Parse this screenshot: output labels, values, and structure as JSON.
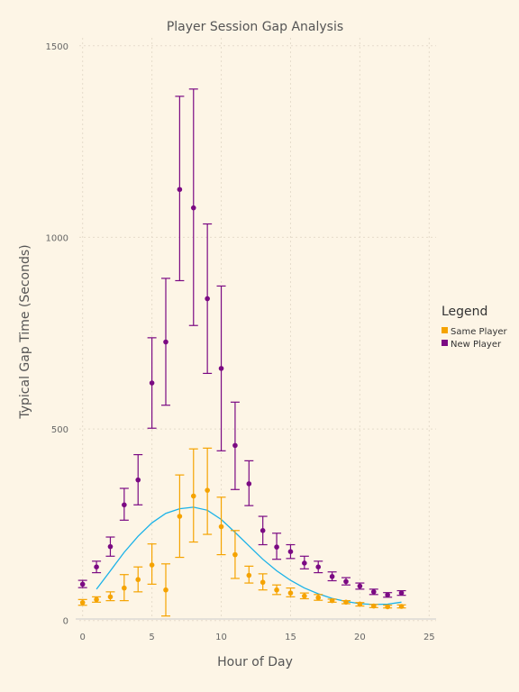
{
  "chart_data": {
    "type": "scatter",
    "title": "Player Session Gap Analysis",
    "xlabel": "Hour of Day",
    "ylabel": "Typical Gap Time (Seconds)",
    "xlim": [
      -0.5,
      25.5
    ],
    "ylim": [
      -10,
      1530
    ],
    "xticks": [
      "0",
      "5",
      "10",
      "15",
      "20",
      "25"
    ],
    "yticks": [
      "0",
      "500",
      "1000",
      "1500"
    ],
    "grid": true,
    "legend": {
      "title": "Legend",
      "position": "right"
    },
    "series": [
      {
        "name": "Same Player",
        "color": "#f5a300",
        "points": [
          {
            "x": 0,
            "y": 47,
            "lo": 40,
            "hi": 55
          },
          {
            "x": 1,
            "y": 55,
            "lo": 48,
            "hi": 62
          },
          {
            "x": 2,
            "y": 62,
            "lo": 52,
            "hi": 75
          },
          {
            "x": 3,
            "y": 85,
            "lo": 52,
            "hi": 120
          },
          {
            "x": 4,
            "y": 107,
            "lo": 75,
            "hi": 140
          },
          {
            "x": 5,
            "y": 145,
            "lo": 95,
            "hi": 200
          },
          {
            "x": 6,
            "y": 80,
            "lo": 12,
            "hi": 148
          },
          {
            "x": 7,
            "y": 272,
            "lo": 165,
            "hi": 380
          },
          {
            "x": 8,
            "y": 325,
            "lo": 205,
            "hi": 448
          },
          {
            "x": 9,
            "y": 340,
            "lo": 225,
            "hi": 450
          },
          {
            "x": 10,
            "y": 245,
            "lo": 172,
            "hi": 322
          },
          {
            "x": 11,
            "y": 172,
            "lo": 110,
            "hi": 235
          },
          {
            "x": 12,
            "y": 118,
            "lo": 98,
            "hi": 142
          },
          {
            "x": 13,
            "y": 100,
            "lo": 80,
            "hi": 122
          },
          {
            "x": 14,
            "y": 80,
            "lo": 68,
            "hi": 93
          },
          {
            "x": 15,
            "y": 72,
            "lo": 62,
            "hi": 85
          },
          {
            "x": 16,
            "y": 64,
            "lo": 57,
            "hi": 72
          },
          {
            "x": 17,
            "y": 60,
            "lo": 53,
            "hi": 68
          },
          {
            "x": 18,
            "y": 52,
            "lo": 48,
            "hi": 56
          },
          {
            "x": 19,
            "y": 48,
            "lo": 44,
            "hi": 52
          },
          {
            "x": 20,
            "y": 43,
            "lo": 38,
            "hi": 47
          },
          {
            "x": 21,
            "y": 38,
            "lo": 34,
            "hi": 42
          },
          {
            "x": 22,
            "y": 36,
            "lo": 33,
            "hi": 40
          },
          {
            "x": 23,
            "y": 37,
            "lo": 33,
            "hi": 41
          }
        ]
      },
      {
        "name": "New Player",
        "color": "#7b0a83",
        "points": [
          {
            "x": 0,
            "y": 95,
            "lo": 86,
            "hi": 105
          },
          {
            "x": 1,
            "y": 140,
            "lo": 125,
            "hi": 155
          },
          {
            "x": 2,
            "y": 193,
            "lo": 168,
            "hi": 218
          },
          {
            "x": 3,
            "y": 302,
            "lo": 262,
            "hi": 345
          },
          {
            "x": 4,
            "y": 367,
            "lo": 302,
            "hi": 433
          },
          {
            "x": 5,
            "y": 620,
            "lo": 502,
            "hi": 738
          },
          {
            "x": 6,
            "y": 727,
            "lo": 562,
            "hi": 893
          },
          {
            "x": 7,
            "y": 1125,
            "lo": 887,
            "hi": 1368
          },
          {
            "x": 8,
            "y": 1077,
            "lo": 770,
            "hi": 1387
          },
          {
            "x": 9,
            "y": 840,
            "lo": 645,
            "hi": 1035
          },
          {
            "x": 10,
            "y": 658,
            "lo": 443,
            "hi": 873
          },
          {
            "x": 11,
            "y": 457,
            "lo": 342,
            "hi": 570
          },
          {
            "x": 12,
            "y": 357,
            "lo": 300,
            "hi": 417
          },
          {
            "x": 13,
            "y": 235,
            "lo": 198,
            "hi": 272
          },
          {
            "x": 14,
            "y": 192,
            "lo": 160,
            "hi": 228
          },
          {
            "x": 15,
            "y": 180,
            "lo": 162,
            "hi": 198
          },
          {
            "x": 16,
            "y": 150,
            "lo": 135,
            "hi": 168
          },
          {
            "x": 17,
            "y": 140,
            "lo": 125,
            "hi": 155
          },
          {
            "x": 18,
            "y": 115,
            "lo": 104,
            "hi": 127
          },
          {
            "x": 19,
            "y": 102,
            "lo": 93,
            "hi": 112
          },
          {
            "x": 20,
            "y": 90,
            "lo": 82,
            "hi": 98
          },
          {
            "x": 21,
            "y": 75,
            "lo": 68,
            "hi": 82
          },
          {
            "x": 22,
            "y": 67,
            "lo": 61,
            "hi": 73
          },
          {
            "x": 23,
            "y": 72,
            "lo": 66,
            "hi": 78
          }
        ]
      }
    ],
    "trend": {
      "color": "#1ab2e8",
      "x": [
        1,
        2,
        3,
        4,
        5,
        6,
        7,
        8,
        9,
        10,
        11,
        12,
        13,
        14,
        15,
        16,
        17,
        18,
        19,
        20,
        21,
        22,
        23
      ],
      "y": [
        82,
        130,
        178,
        220,
        255,
        280,
        292,
        296,
        288,
        264,
        230,
        195,
        160,
        130,
        105,
        85,
        70,
        58,
        50,
        44,
        42,
        43,
        48
      ]
    }
  }
}
